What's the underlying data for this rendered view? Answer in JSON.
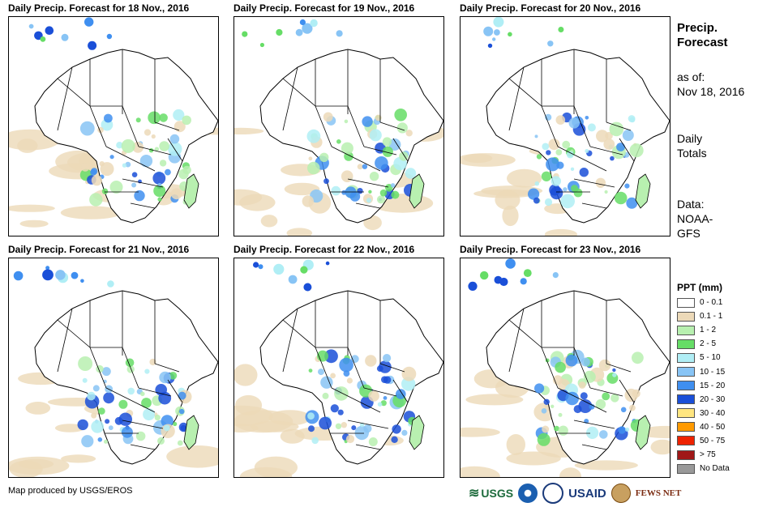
{
  "panels": [
    {
      "title": "Daily Precip. Forecast for 18 Nov., 2016"
    },
    {
      "title": "Daily Precip. Forecast for 19 Nov., 2016"
    },
    {
      "title": "Daily Precip. Forecast for 20 Nov., 2016"
    },
    {
      "title": "Daily Precip. Forecast for 21 Nov., 2016"
    },
    {
      "title": "Daily Precip. Forecast for 22 Nov., 2016"
    },
    {
      "title": "Daily Precip. Forecast for 23 Nov., 2016"
    }
  ],
  "side": {
    "title_line1": "Precip.",
    "title_line2": "Forecast",
    "asof_line1": "as of:",
    "asof_line2": "Nov 18, 2016",
    "totals_line1": "Daily",
    "totals_line2": "Totals",
    "data_line1": "Data:",
    "data_line2": "NOAA-",
    "data_line3": "GFS"
  },
  "legend": {
    "title": "PPT (mm)",
    "items": [
      {
        "label": "0 - 0.1",
        "color": "#ffffff"
      },
      {
        "label": "0.1 - 1",
        "color": "#ecd9b8"
      },
      {
        "label": "1 - 2",
        "color": "#b8f0b0"
      },
      {
        "label": "2 - 5",
        "color": "#66dd66"
      },
      {
        "label": "5 - 10",
        "color": "#b0eef5"
      },
      {
        "label": "10 - 15",
        "color": "#88c4f5"
      },
      {
        "label": "15 - 20",
        "color": "#3f8ff0"
      },
      {
        "label": "20 - 30",
        "color": "#1a4fd8"
      },
      {
        "label": "30 - 40",
        "color": "#ffe680"
      },
      {
        "label": "40 - 50",
        "color": "#ff9a00"
      },
      {
        "label": "50 - 75",
        "color": "#ee2200"
      },
      {
        "label": "> 75",
        "color": "#a01818"
      },
      {
        "label": "No Data",
        "color": "#999999"
      }
    ]
  },
  "credit": "Map produced by USGS/EROS",
  "logos": {
    "usgs": "USGS",
    "usaid": "USAID",
    "fews": "FEWS NET"
  }
}
